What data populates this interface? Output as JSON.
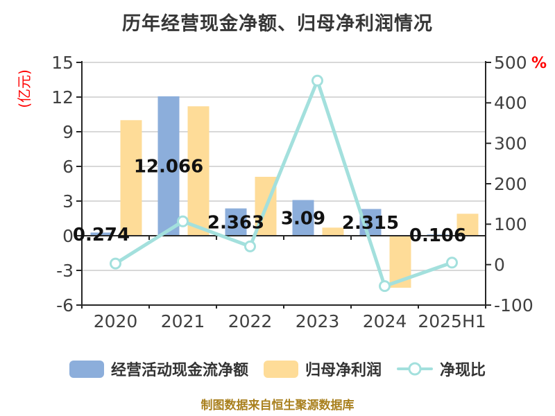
{
  "title": "历年经营现金净额、归母净利润情况",
  "left_axis": {
    "unit_label": "(亿元)",
    "ticks": [
      15,
      12,
      9,
      6,
      3,
      0,
      -3,
      -6
    ]
  },
  "right_axis": {
    "unit_label": "%",
    "ticks": [
      500,
      400,
      300,
      200,
      100,
      0,
      -100
    ]
  },
  "x_axis": {
    "categories": [
      "2020",
      "2021",
      "2022",
      "2023",
      "2024",
      "2025H1"
    ]
  },
  "legend": {
    "items": [
      {
        "label": "经营活动现金流净额",
        "type": "bar",
        "color_key": "bar_cash"
      },
      {
        "label": "归母净利润",
        "type": "bar",
        "color_key": "bar_profit"
      },
      {
        "label": "净现比",
        "type": "line",
        "color_key": "line_ratio"
      }
    ]
  },
  "footer": {
    "credit": "制图数据来自恒生聚源数据库"
  },
  "colors": {
    "bar_cash": "#8CAEDB",
    "bar_profit": "#FEDC98",
    "line_ratio": "#A3E0DD",
    "marker_fill": "#FFFFFF",
    "title_text": "#363636",
    "axis_text": "#404040",
    "axis_line": "#262626",
    "gridline": "#CCCCCC",
    "accent_red": "#FF0000",
    "data_label": "#111111",
    "footer_text": "#A9801E"
  },
  "chart_data": {
    "type": "bar",
    "categories": [
      "2020",
      "2021",
      "2022",
      "2023",
      "2024",
      "2025H1"
    ],
    "series": [
      {
        "name": "经营活动现金流净额",
        "type": "bar",
        "axis": "left",
        "color_key": "bar_cash",
        "values": [
          0.274,
          12.066,
          2.363,
          3.09,
          2.315,
          0.106
        ],
        "point_labels": [
          "0.274",
          "12.066",
          "2.363",
          "3.09",
          "2.315",
          "0.106"
        ]
      },
      {
        "name": "归母净利润",
        "type": "bar",
        "axis": "left",
        "color_key": "bar_profit",
        "values": [
          10.0,
          11.2,
          5.1,
          0.7,
          -4.5,
          1.9
        ]
      },
      {
        "name": "净现比",
        "type": "line",
        "axis": "right",
        "color_key": "line_ratio",
        "values": [
          2.7,
          107,
          45,
          455,
          -53,
          5
        ]
      }
    ],
    "title": "历年经营现金净额、归母净利润情况",
    "left_ylabel": "(亿元)",
    "right_ylabel": "%",
    "left_ylim": [
      -6,
      15
    ],
    "right_ylim": [
      -100,
      500
    ],
    "grid": true,
    "legend_position": "bottom"
  }
}
